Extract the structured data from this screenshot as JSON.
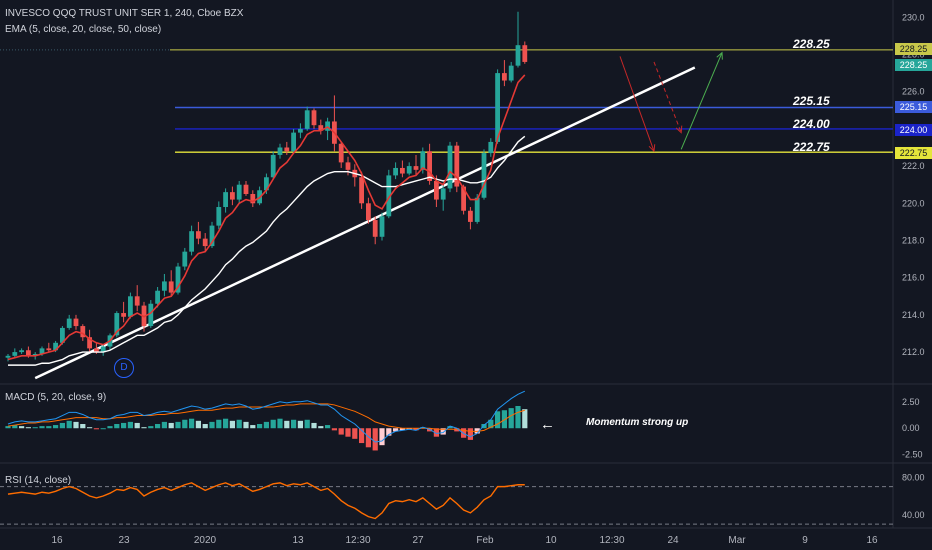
{
  "header": {
    "symbol_line": "INVESCO QQQ TRUST UNIT SER 1, 240, Cboe BZX",
    "ema_line": "EMA (5, close, 20, close, 50, close)"
  },
  "levels": [
    {
      "value": 228.25,
      "label": "228.25",
      "color": "#c8c84a"
    },
    {
      "value": 225.15,
      "label": "225.15",
      "color": "#3b5bdb"
    },
    {
      "value": 224.0,
      "label": "224.00",
      "color": "#1a23c9"
    },
    {
      "value": 222.75,
      "label": "222.75",
      "color": "#e5e53b"
    }
  ],
  "price_tags": [
    {
      "text": "228.25",
      "bg": "#c8c84a",
      "fg": "#131722"
    },
    {
      "text": "228.25",
      "bg": "#26a69a",
      "fg": "#ffffff"
    },
    {
      "text": "225.15",
      "bg": "#3b5bdb",
      "fg": "#ffffff"
    },
    {
      "text": "224.00",
      "bg": "#1a23c9",
      "fg": "#ffffff"
    },
    {
      "text": "222.75",
      "bg": "#e5e53b",
      "fg": "#131722"
    }
  ],
  "macd": {
    "label": "MACD (5, 20, close, 9)",
    "ticks": [
      "2.50",
      "0.00",
      "-2.50"
    ]
  },
  "rsi": {
    "label": "RSI (14, close)",
    "ticks": [
      "80.00",
      "40.00"
    ]
  },
  "annotation": {
    "arrow": "←",
    "text": "Momentum strong up"
  },
  "event_badge": "D",
  "colors": {
    "bg": "#131722",
    "up": "#26a69a",
    "down": "#ef5350",
    "ema_fast": "#e53935",
    "ema_slow": "#ffffff",
    "macd": "#2196f3",
    "signal": "#ff6d00",
    "rsi": "#ff6d00",
    "green_arrow": "#4caf50"
  },
  "chart_data": {
    "type": "candlestick",
    "y_ticks": [
      212,
      214,
      216,
      218,
      220,
      222,
      224,
      226,
      228,
      230
    ],
    "ylim": [
      210.5,
      230.5
    ],
    "x_ticks": [
      "16",
      "23",
      "2020",
      "13",
      "12:30",
      "27",
      "Feb",
      "10",
      "12:30",
      "24",
      "Mar",
      "9",
      "16"
    ],
    "candles": [
      [
        211.7,
        211.9,
        211.5,
        211.8
      ],
      [
        211.8,
        212.2,
        211.7,
        212.0
      ],
      [
        212.0,
        212.2,
        211.9,
        212.1
      ],
      [
        212.1,
        212.3,
        211.7,
        211.8
      ],
      [
        211.8,
        212.0,
        211.6,
        211.9
      ],
      [
        211.9,
        212.3,
        211.8,
        212.2
      ],
      [
        212.2,
        212.5,
        212.0,
        212.1
      ],
      [
        212.1,
        212.6,
        212.0,
        212.5
      ],
      [
        212.5,
        213.4,
        212.4,
        213.3
      ],
      [
        213.3,
        214.0,
        213.2,
        213.8
      ],
      [
        213.8,
        214.0,
        213.2,
        213.4
      ],
      [
        213.4,
        213.5,
        212.6,
        212.8
      ],
      [
        212.8,
        213.2,
        212.0,
        212.2
      ],
      [
        212.2,
        212.5,
        211.9,
        212.0
      ],
      [
        212.0,
        212.4,
        211.8,
        212.3
      ],
      [
        212.3,
        213.0,
        212.1,
        212.9
      ],
      [
        212.9,
        214.2,
        212.8,
        214.1
      ],
      [
        214.1,
        214.7,
        213.6,
        213.9
      ],
      [
        213.9,
        215.2,
        213.8,
        215.0
      ],
      [
        215.0,
        215.6,
        214.2,
        214.5
      ],
      [
        214.5,
        214.7,
        213.1,
        213.4
      ],
      [
        213.4,
        214.8,
        213.3,
        214.6
      ],
      [
        214.6,
        215.5,
        214.4,
        215.3
      ],
      [
        215.3,
        216.2,
        215.0,
        215.8
      ],
      [
        215.8,
        216.4,
        215.0,
        215.2
      ],
      [
        215.2,
        216.8,
        215.1,
        216.6
      ],
      [
        216.6,
        217.6,
        216.4,
        217.4
      ],
      [
        217.4,
        218.8,
        217.2,
        218.5
      ],
      [
        218.5,
        219.0,
        217.8,
        218.1
      ],
      [
        218.1,
        218.4,
        217.4,
        217.7
      ],
      [
        217.7,
        219.0,
        217.6,
        218.8
      ],
      [
        218.8,
        220.1,
        218.6,
        219.8
      ],
      [
        219.8,
        220.8,
        219.5,
        220.6
      ],
      [
        220.6,
        220.9,
        219.9,
        220.2
      ],
      [
        220.2,
        221.2,
        220.0,
        221.0
      ],
      [
        221.0,
        221.2,
        220.4,
        220.5
      ],
      [
        220.5,
        220.7,
        219.8,
        220.0
      ],
      [
        220.0,
        220.9,
        219.9,
        220.7
      ],
      [
        220.7,
        221.6,
        220.5,
        221.4
      ],
      [
        221.4,
        222.8,
        221.3,
        222.6
      ],
      [
        222.6,
        223.2,
        222.4,
        223.0
      ],
      [
        223.0,
        223.3,
        222.6,
        222.8
      ],
      [
        222.8,
        224.0,
        222.7,
        223.8
      ],
      [
        223.8,
        224.3,
        223.5,
        224.0
      ],
      [
        224.0,
        225.2,
        223.9,
        225.0
      ],
      [
        225.0,
        225.1,
        224.0,
        224.2
      ],
      [
        224.2,
        224.5,
        223.7,
        223.9
      ],
      [
        223.9,
        224.6,
        223.4,
        224.4
      ],
      [
        224.4,
        225.8,
        222.8,
        223.2
      ],
      [
        223.2,
        223.3,
        221.9,
        222.2
      ],
      [
        222.2,
        222.5,
        221.5,
        221.8
      ],
      [
        221.8,
        222.1,
        220.9,
        221.4
      ],
      [
        221.4,
        221.7,
        219.7,
        220.0
      ],
      [
        220.0,
        220.3,
        218.9,
        219.1
      ],
      [
        219.1,
        219.3,
        217.8,
        218.2
      ],
      [
        218.2,
        219.5,
        218.0,
        219.3
      ],
      [
        219.3,
        221.8,
        219.2,
        221.5
      ],
      [
        221.5,
        222.2,
        221.3,
        221.9
      ],
      [
        221.9,
        222.3,
        221.4,
        221.6
      ],
      [
        221.6,
        222.2,
        221.5,
        222.0
      ],
      [
        222.0,
        222.6,
        221.5,
        221.8
      ],
      [
        221.8,
        223.0,
        221.6,
        222.8
      ],
      [
        222.8,
        223.2,
        221.0,
        221.2
      ],
      [
        221.2,
        221.5,
        219.8,
        220.2
      ],
      [
        220.2,
        221.1,
        219.6,
        220.8
      ],
      [
        220.8,
        223.3,
        220.6,
        223.1
      ],
      [
        223.1,
        223.3,
        220.6,
        220.9
      ],
      [
        220.9,
        221.0,
        219.4,
        219.6
      ],
      [
        219.6,
        219.8,
        218.6,
        219.0
      ],
      [
        219.0,
        220.5,
        218.9,
        220.3
      ],
      [
        220.3,
        222.9,
        220.2,
        222.7
      ],
      [
        222.7,
        223.5,
        222.5,
        223.3
      ],
      [
        223.3,
        227.2,
        223.2,
        227.0
      ],
      [
        227.0,
        227.7,
        226.3,
        226.6
      ],
      [
        226.6,
        227.6,
        226.5,
        227.4
      ],
      [
        227.4,
        230.3,
        227.3,
        228.5
      ],
      [
        228.5,
        228.7,
        227.5,
        227.6
      ]
    ],
    "ema_fast": [
      211.6,
      211.7,
      211.8,
      211.8,
      211.8,
      211.9,
      212.0,
      212.1,
      212.5,
      212.9,
      213.1,
      213.0,
      212.7,
      212.5,
      212.4,
      212.6,
      213.1,
      213.4,
      213.9,
      214.1,
      213.9,
      214.1,
      214.5,
      214.9,
      215.0,
      215.5,
      216.1,
      216.9,
      217.3,
      217.4,
      217.9,
      218.5,
      219.2,
      219.5,
      220.0,
      220.2,
      220.1,
      220.3,
      220.7,
      221.3,
      221.9,
      222.2,
      222.7,
      223.1,
      223.7,
      223.9,
      223.9,
      224.1,
      223.8,
      223.3,
      222.8,
      222.3,
      221.6,
      220.7,
      219.9,
      219.7,
      220.3,
      220.8,
      221.1,
      221.4,
      221.5,
      221.9,
      221.7,
      221.2,
      221.0,
      221.7,
      221.4,
      220.8,
      220.2,
      220.2,
      221.0,
      221.8,
      223.5,
      224.5,
      225.5,
      226.5,
      226.9
    ],
    "ema_slow": [
      211.3,
      211.3,
      211.3,
      211.3,
      211.3,
      211.4,
      211.4,
      211.5,
      211.6,
      211.8,
      211.9,
      212.0,
      212.0,
      212.0,
      212.0,
      212.1,
      212.3,
      212.5,
      212.7,
      212.9,
      212.9,
      213.1,
      213.3,
      213.6,
      213.7,
      214.0,
      214.4,
      214.8,
      215.1,
      215.4,
      215.8,
      216.2,
      216.7,
      217.0,
      217.4,
      217.7,
      217.9,
      218.2,
      218.5,
      219.0,
      219.4,
      219.7,
      220.1,
      220.5,
      220.9,
      221.2,
      221.4,
      221.6,
      221.7,
      221.7,
      221.7,
      221.6,
      221.5,
      221.3,
      221.1,
      220.9,
      220.9,
      220.9,
      221.0,
      221.1,
      221.2,
      221.3,
      221.4,
      221.3,
      221.2,
      221.3,
      221.3,
      221.2,
      221.1,
      221.1,
      221.2,
      221.4,
      221.9,
      222.3,
      222.8,
      223.3,
      223.6
    ],
    "trendline": [
      [
        4,
        210.6
      ],
      [
        101,
        227.3
      ]
    ],
    "projection_red": [
      [
        90,
        227.9
      ],
      [
        95,
        222.8
      ]
    ],
    "projection_red_dashed": [
      [
        95,
        227.6
      ],
      [
        99,
        223.8
      ]
    ],
    "projection_green": [
      [
        99,
        222.9
      ],
      [
        105,
        228.1
      ]
    ],
    "macd": {
      "ylim": [
        -3.0,
        3.8
      ],
      "histogram": [
        0.2,
        0.3,
        0.2,
        0.1,
        0.1,
        0.2,
        0.2,
        0.3,
        0.5,
        0.7,
        0.6,
        0.4,
        0.1,
        -0.1,
        0.0,
        0.2,
        0.4,
        0.5,
        0.6,
        0.5,
        0.1,
        0.2,
        0.4,
        0.6,
        0.5,
        0.6,
        0.8,
        0.9,
        0.7,
        0.4,
        0.6,
        0.8,
        0.9,
        0.7,
        0.8,
        0.6,
        0.3,
        0.4,
        0.6,
        0.8,
        0.9,
        0.7,
        0.8,
        0.7,
        0.8,
        0.5,
        0.2,
        0.3,
        -0.2,
        -0.6,
        -0.8,
        -1.0,
        -1.4,
        -1.8,
        -2.1,
        -1.6,
        -0.7,
        -0.3,
        -0.2,
        -0.1,
        -0.2,
        0.1,
        -0.3,
        -0.8,
        -0.6,
        0.2,
        -0.3,
        -0.9,
        -1.1,
        -0.5,
        0.4,
        0.8,
        1.6,
        1.7,
        1.9,
        2.1,
        1.8
      ],
      "macd_line": [
        0.4,
        0.6,
        0.7,
        0.6,
        0.6,
        0.7,
        0.8,
        0.9,
        1.2,
        1.5,
        1.5,
        1.3,
        1.0,
        0.8,
        0.8,
        0.9,
        1.2,
        1.3,
        1.5,
        1.5,
        1.2,
        1.3,
        1.5,
        1.6,
        1.5,
        1.7,
        1.9,
        2.1,
        2.0,
        1.8,
        1.9,
        2.1,
        2.3,
        2.2,
        2.3,
        2.1,
        1.8,
        1.9,
        2.1,
        2.3,
        2.5,
        2.4,
        2.5,
        2.5,
        2.6,
        2.4,
        2.2,
        2.2,
        1.8,
        1.2,
        0.8,
        0.4,
        -0.2,
        -0.8,
        -1.3,
        -1.2,
        -0.6,
        -0.3,
        -0.2,
        -0.1,
        -0.2,
        0.1,
        -0.1,
        -0.5,
        -0.4,
        0.2,
        0.0,
        -0.5,
        -0.8,
        -0.5,
        0.3,
        0.8,
        1.8,
        2.3,
        2.8,
        3.2,
        3.5
      ],
      "signal_line": [
        0.2,
        0.3,
        0.4,
        0.5,
        0.5,
        0.6,
        0.6,
        0.7,
        0.8,
        0.9,
        1.0,
        1.0,
        1.0,
        1.0,
        0.9,
        0.9,
        1.0,
        1.0,
        1.1,
        1.2,
        1.2,
        1.2,
        1.3,
        1.3,
        1.4,
        1.4,
        1.5,
        1.6,
        1.7,
        1.7,
        1.7,
        1.8,
        1.9,
        1.9,
        2.0,
        2.0,
        2.0,
        2.0,
        2.0,
        2.0,
        2.1,
        2.2,
        2.2,
        2.3,
        2.3,
        2.3,
        2.3,
        2.3,
        2.2,
        2.0,
        1.8,
        1.6,
        1.3,
        1.0,
        0.6,
        0.4,
        0.2,
        0.1,
        0.0,
        0.0,
        0.0,
        0.0,
        0.0,
        -0.1,
        -0.1,
        -0.1,
        -0.1,
        -0.2,
        -0.3,
        -0.3,
        -0.2,
        0.1,
        0.4,
        0.8,
        1.2,
        1.5,
        1.7
      ]
    },
    "rsi": {
      "ylim": [
        28,
        92
      ],
      "bands": [
        70,
        30
      ],
      "values": [
        62,
        63,
        64,
        63,
        62,
        64,
        63,
        65,
        68,
        70,
        68,
        64,
        60,
        58,
        60,
        63,
        67,
        66,
        69,
        67,
        60,
        64,
        67,
        69,
        66,
        69,
        72,
        74,
        70,
        66,
        69,
        72,
        74,
        71,
        73,
        69,
        65,
        67,
        70,
        73,
        74,
        71,
        73,
        72,
        74,
        70,
        66,
        68,
        62,
        55,
        50,
        47,
        42,
        38,
        36,
        42,
        52,
        55,
        54,
        56,
        54,
        58,
        52,
        46,
        50,
        58,
        52,
        45,
        42,
        48,
        56,
        60,
        70,
        70,
        71,
        72,
        72
      ]
    }
  }
}
